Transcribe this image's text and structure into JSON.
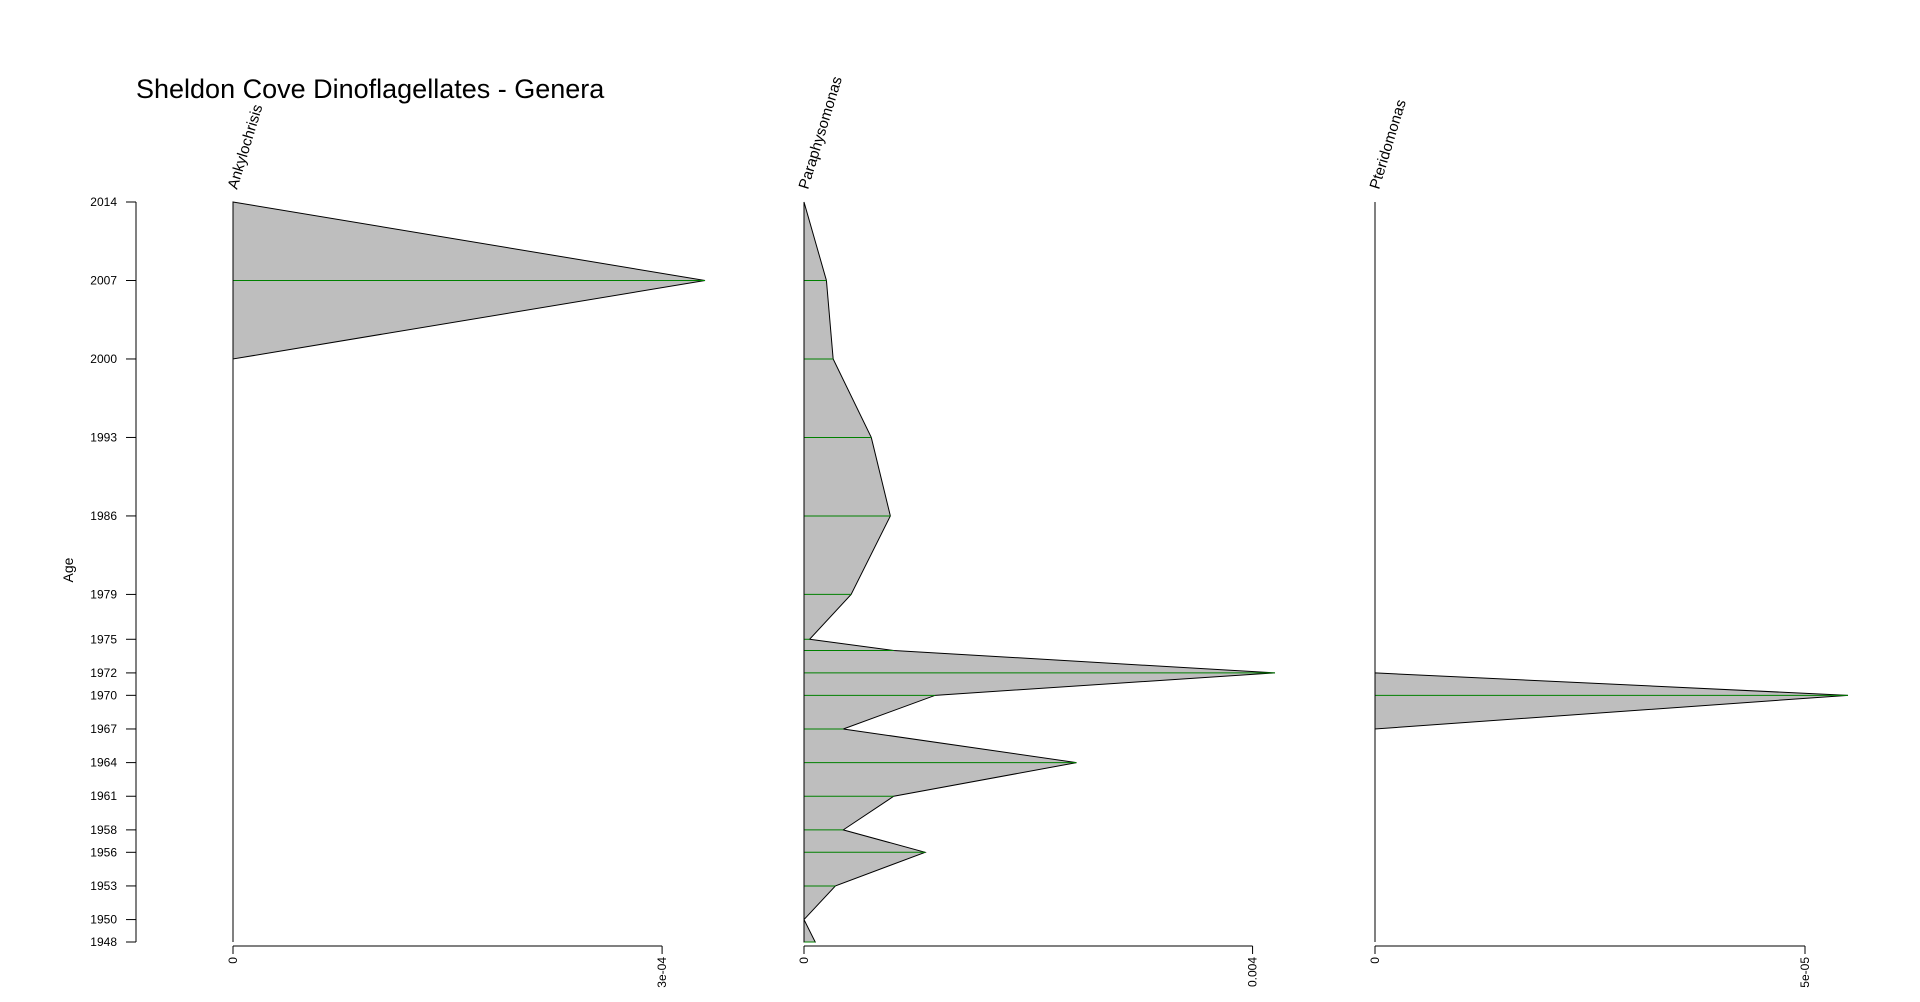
{
  "chart_data": {
    "type": "area",
    "title": "Sheldon Cove Dinoflagellates - Genera",
    "ylabel": "Age",
    "ylim": [
      1948,
      2014
    ],
    "y_ticks": [
      2014,
      2007,
      2000,
      1993,
      1986,
      1979,
      1975,
      1972,
      1970,
      1967,
      1964,
      1961,
      1958,
      1956,
      1953,
      1950,
      1948
    ],
    "grid": false,
    "colors": {
      "fill": "#bebebe",
      "outline": "#000000",
      "stem": "#008000"
    },
    "panels": [
      {
        "name": "Ankylochrisis",
        "xlim": [
          0,
          0.00033
        ],
        "x_ticks": [
          {
            "value": 0,
            "label": "0"
          },
          {
            "value": 0.0003,
            "label": "3e-04"
          }
        ],
        "samples": [
          {
            "age": 2014,
            "value": 0
          },
          {
            "age": 2007,
            "value": 0.00033
          },
          {
            "age": 2000,
            "value": 0
          }
        ]
      },
      {
        "name": "Paraphysomonas",
        "xlim": [
          0,
          0.0042
        ],
        "x_ticks": [
          {
            "value": 0,
            "label": "0"
          },
          {
            "value": 0.004,
            "label": "0.004"
          }
        ],
        "samples": [
          {
            "age": 2014,
            "value": 0
          },
          {
            "age": 2007,
            "value": 0.0002
          },
          {
            "age": 2000,
            "value": 0.00026
          },
          {
            "age": 1993,
            "value": 0.0006
          },
          {
            "age": 1986,
            "value": 0.00077
          },
          {
            "age": 1979,
            "value": 0.00042
          },
          {
            "age": 1975,
            "value": 5e-05
          },
          {
            "age": 1974,
            "value": 0.0008
          },
          {
            "age": 1972,
            "value": 0.0042
          },
          {
            "age": 1970,
            "value": 0.00117
          },
          {
            "age": 1967,
            "value": 0.00035
          },
          {
            "age": 1964,
            "value": 0.00243
          },
          {
            "age": 1961,
            "value": 0.0008
          },
          {
            "age": 1958,
            "value": 0.00035
          },
          {
            "age": 1956,
            "value": 0.00108
          },
          {
            "age": 1953,
            "value": 0.00028
          },
          {
            "age": 1950,
            "value": 0
          },
          {
            "age": 1948,
            "value": 0.0001
          }
        ]
      },
      {
        "name": "Pteridomonas",
        "xlim": [
          0,
          5.5e-05
        ],
        "x_ticks": [
          {
            "value": 0,
            "label": "0"
          },
          {
            "value": 5e-05,
            "label": "5e-05"
          }
        ],
        "samples": [
          {
            "age": 1972,
            "value": 0
          },
          {
            "age": 1970,
            "value": 5.5e-05
          },
          {
            "age": 1967,
            "value": 0
          }
        ]
      }
    ]
  }
}
